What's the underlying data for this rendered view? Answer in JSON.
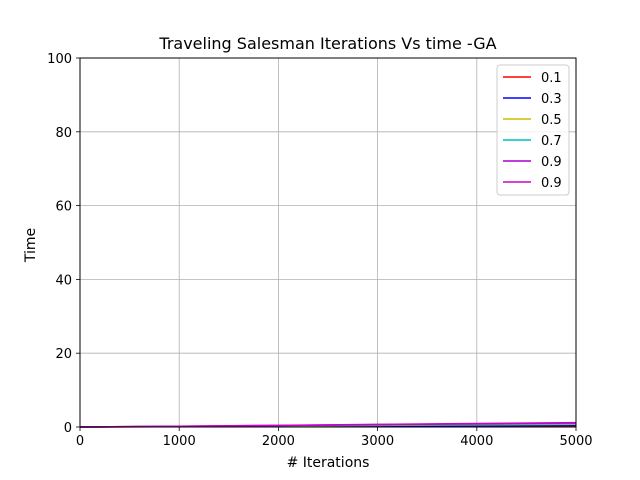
{
  "chart_data": {
    "type": "line",
    "title": "Traveling Salesman Iterations Vs time -GA",
    "xlabel": "# Iterations",
    "ylabel": "Time",
    "xlim": [
      0,
      5000
    ],
    "ylim": [
      0,
      100
    ],
    "xticks": [
      0,
      1000,
      2000,
      3000,
      4000,
      5000
    ],
    "yticks": [
      0,
      20,
      40,
      60,
      80,
      100
    ],
    "grid": true,
    "legend_position": "top-right",
    "x": [
      0,
      1000,
      2000,
      3000,
      4000,
      5000
    ],
    "series": [
      {
        "name": "0.1",
        "color": "#ff0000",
        "values": [
          0,
          0.1,
          0.15,
          0.2,
          0.25,
          0.3
        ]
      },
      {
        "name": "0.3",
        "color": "#0000ff",
        "values": [
          0,
          0.12,
          0.2,
          0.28,
          0.36,
          0.45
        ]
      },
      {
        "name": "0.5",
        "color": "#ccbb00",
        "values": [
          0,
          0.15,
          0.3,
          0.45,
          0.6,
          0.75
        ]
      },
      {
        "name": "0.7",
        "color": "#00bfbf",
        "values": [
          0,
          0.18,
          0.36,
          0.55,
          0.75,
          0.95
        ]
      },
      {
        "name": "0.9",
        "color": "#aa00cc",
        "values": [
          0,
          0.2,
          0.42,
          0.65,
          0.88,
          1.1
        ]
      },
      {
        "name": "0.9",
        "color": "#cc00cc",
        "values": [
          0,
          0.22,
          0.45,
          0.7,
          0.95,
          1.2
        ]
      }
    ]
  }
}
